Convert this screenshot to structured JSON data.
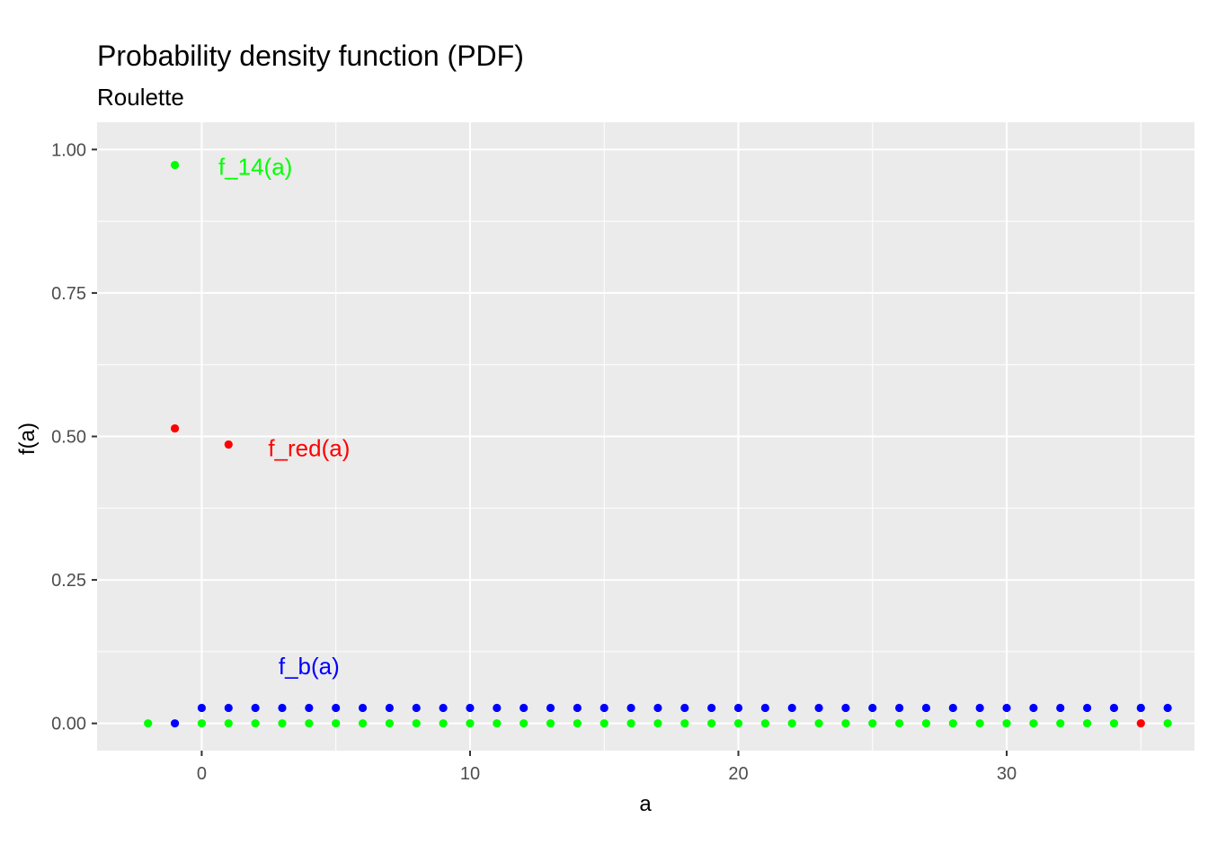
{
  "chart_data": {
    "type": "scatter",
    "title": "Probability density function (PDF)",
    "subtitle": "Roulette",
    "xlabel": "a",
    "ylabel": "f(a)",
    "xlim": [
      -3.9,
      37.0
    ],
    "ylim": [
      -0.0475,
      1.0475
    ],
    "x_ticks": [
      0,
      10,
      20,
      30
    ],
    "y_ticks": [
      0.0,
      0.25,
      0.5,
      0.75,
      1.0
    ],
    "y_tick_labels": [
      "0.00",
      "0.25",
      "0.50",
      "0.75",
      "1.00"
    ],
    "grid": true,
    "legend": "none",
    "series": [
      {
        "color": "#00ff00",
        "points": [
          [
            -2,
            0
          ],
          [
            -1,
            0.973
          ],
          [
            0,
            0
          ],
          [
            1,
            0
          ],
          [
            2,
            0
          ],
          [
            3,
            0
          ],
          [
            4,
            0
          ],
          [
            5,
            0
          ],
          [
            6,
            0
          ],
          [
            7,
            0
          ],
          [
            8,
            0
          ],
          [
            9,
            0
          ],
          [
            10,
            0
          ],
          [
            11,
            0
          ],
          [
            12,
            0
          ],
          [
            13,
            0
          ],
          [
            14,
            0
          ],
          [
            15,
            0
          ],
          [
            16,
            0
          ],
          [
            17,
            0
          ],
          [
            18,
            0
          ],
          [
            19,
            0
          ],
          [
            20,
            0
          ],
          [
            21,
            0
          ],
          [
            22,
            0
          ],
          [
            23,
            0
          ],
          [
            24,
            0
          ],
          [
            25,
            0
          ],
          [
            26,
            0
          ],
          [
            27,
            0
          ],
          [
            28,
            0
          ],
          [
            29,
            0
          ],
          [
            30,
            0
          ],
          [
            31,
            0
          ],
          [
            32,
            0
          ],
          [
            33,
            0
          ],
          [
            34,
            0
          ],
          [
            35,
            0.027
          ],
          [
            36,
            0
          ]
        ]
      },
      {
        "color": "#ff0000",
        "points": [
          [
            -1,
            0.514
          ],
          [
            1,
            0.486
          ],
          [
            35,
            0
          ]
        ]
      },
      {
        "color": "#0000ff",
        "points": [
          [
            -1,
            0
          ],
          [
            0,
            0.027
          ],
          [
            1,
            0.027
          ],
          [
            2,
            0.027
          ],
          [
            3,
            0.027
          ],
          [
            4,
            0.027
          ],
          [
            5,
            0.027
          ],
          [
            6,
            0.027
          ],
          [
            7,
            0.027
          ],
          [
            8,
            0.027
          ],
          [
            9,
            0.027
          ],
          [
            10,
            0.027
          ],
          [
            11,
            0.027
          ],
          [
            12,
            0.027
          ],
          [
            13,
            0.027
          ],
          [
            14,
            0.027
          ],
          [
            15,
            0.027
          ],
          [
            16,
            0.027
          ],
          [
            17,
            0.027
          ],
          [
            18,
            0.027
          ],
          [
            19,
            0.027
          ],
          [
            20,
            0.027
          ],
          [
            21,
            0.027
          ],
          [
            22,
            0.027
          ],
          [
            23,
            0.027
          ],
          [
            24,
            0.027
          ],
          [
            25,
            0.027
          ],
          [
            26,
            0.027
          ],
          [
            27,
            0.027
          ],
          [
            28,
            0.027
          ],
          [
            29,
            0.027
          ],
          [
            30,
            0.027
          ],
          [
            31,
            0.027
          ],
          [
            32,
            0.027
          ],
          [
            33,
            0.027
          ],
          [
            34,
            0.027
          ],
          [
            35,
            0.027
          ],
          [
            36,
            0.027
          ]
        ]
      }
    ],
    "annotations": [
      {
        "text": "f_14(a)",
        "x": 2.0,
        "y": 0.97,
        "color": "#00ff00"
      },
      {
        "text": "f_red(a)",
        "x": 4.0,
        "y": 0.48,
        "color": "#ff0000"
      },
      {
        "text": "f_b(a)",
        "x": 4.0,
        "y": 0.1,
        "color": "#0000ff"
      }
    ]
  }
}
